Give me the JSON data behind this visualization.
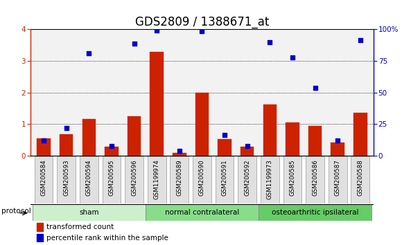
{
  "title": "GDS2809 / 1388671_at",
  "samples": [
    "GSM200584",
    "GSM200593",
    "GSM200594",
    "GSM200595",
    "GSM200596",
    "GSM1199974",
    "GSM200589",
    "GSM200590",
    "GSM200591",
    "GSM200592",
    "GSM1199973",
    "GSM200585",
    "GSM200586",
    "GSM200587",
    "GSM200588"
  ],
  "red_values": [
    0.55,
    0.68,
    1.15,
    0.28,
    1.25,
    3.28,
    0.08,
    2.0,
    0.52,
    0.28,
    1.62,
    1.05,
    0.93,
    0.42,
    1.35
  ],
  "blue_values": [
    11.75,
    22.0,
    81.25,
    7.5,
    88.75,
    99.25,
    3.75,
    98.75,
    16.25,
    7.5,
    90.0,
    77.5,
    53.75,
    11.75,
    91.25
  ],
  "ylim_left": [
    0,
    4
  ],
  "ylim_right": [
    0,
    100
  ],
  "yticks_left": [
    0,
    1,
    2,
    3,
    4
  ],
  "yticks_right": [
    0,
    25,
    50,
    75,
    100
  ],
  "ytick_labels_right": [
    "0",
    "25",
    "50",
    "75",
    "100%"
  ],
  "groups": [
    {
      "label": "sham",
      "start": 0,
      "end": 5,
      "color": "#ccf0cc"
    },
    {
      "label": "normal contralateral",
      "start": 5,
      "end": 10,
      "color": "#88dd88"
    },
    {
      "label": "osteoarthritic ipsilateral",
      "start": 10,
      "end": 15,
      "color": "#66cc66"
    }
  ],
  "protocol_label": "protocol",
  "red_color": "#cc2200",
  "blue_color": "#0000cc",
  "bg_color": "#f2f2f2",
  "legend_red": "transformed count",
  "legend_blue": "percentile rank within the sample",
  "title_fontsize": 12,
  "tick_fontsize": 7.5
}
